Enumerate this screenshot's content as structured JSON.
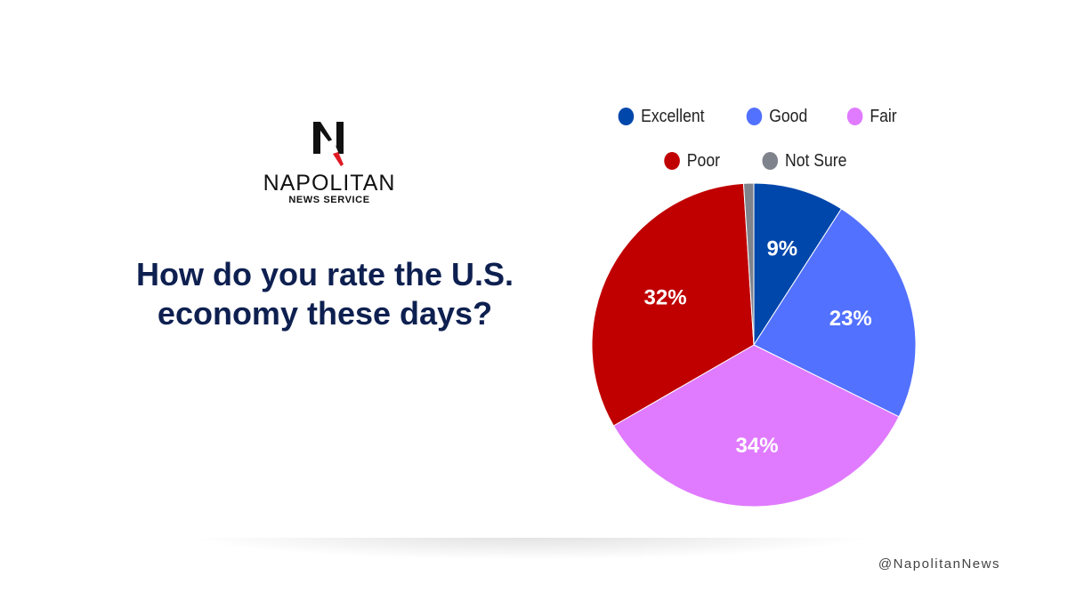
{
  "brand": {
    "name": "NAPOLITAN",
    "subtitle": "NEWS SERVICE",
    "handle": "@NapolitanNews"
  },
  "question": "How do you rate the U.S. economy these days?",
  "chart_data": {
    "type": "pie",
    "title": "How do you rate the U.S. economy these days?",
    "categories": [
      "Excellent",
      "Good",
      "Fair",
      "Poor",
      "Not Sure"
    ],
    "values": [
      9,
      23,
      34,
      32,
      1
    ],
    "data_labels": [
      "9%",
      "23%",
      "34%",
      "32%",
      ""
    ],
    "colors": [
      "#0047ab",
      "#5271ff",
      "#e07bff",
      "#c00000",
      "#7f838c"
    ],
    "start": "top, clockwise",
    "legend": "top"
  }
}
